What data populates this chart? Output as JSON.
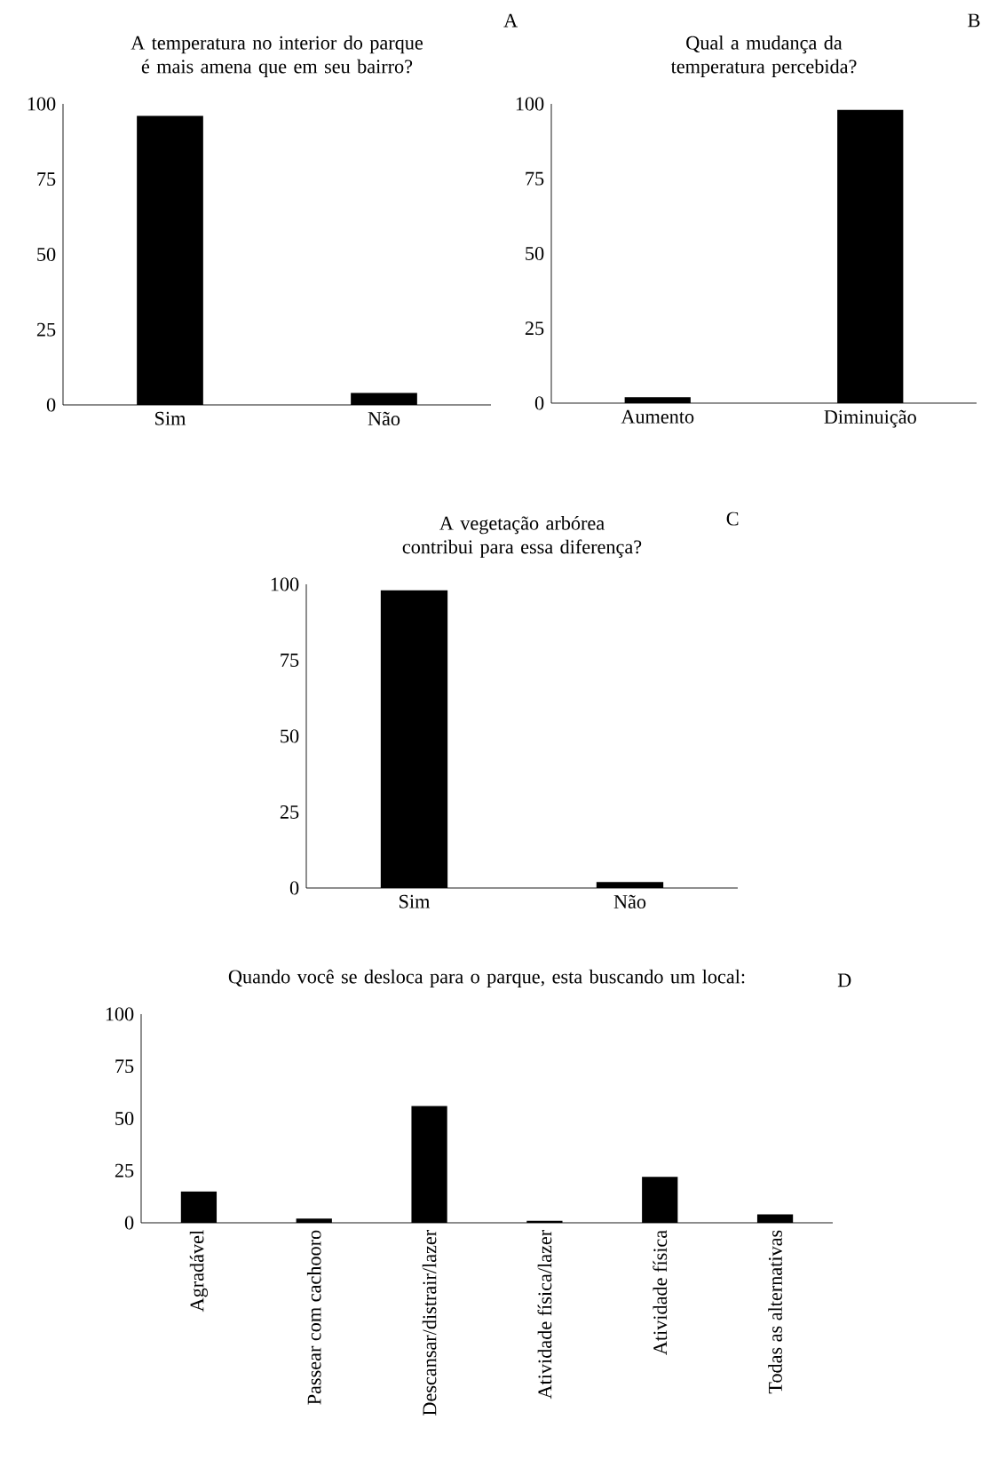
{
  "chart_data": [
    {
      "type": "bar",
      "title": "A  temperatura no interior do parque é mais amena que em seu bairro?",
      "categories": [
        "Sim",
        "Não"
      ],
      "values": [
        96,
        4
      ],
      "color": "#000000",
      "ylim": [
        0,
        100
      ],
      "yticks": [
        0,
        25,
        50,
        75,
        100
      ],
      "annotations": [
        "A"
      ]
    },
    {
      "type": "bar",
      "title": "Qual a mudança da temperatura percebida?",
      "categories": [
        "Aumento",
        "Diminuição"
      ],
      "values": [
        2,
        98
      ],
      "color": "#000000",
      "ylim": [
        0,
        100
      ],
      "yticks": [
        0,
        25,
        50,
        75,
        100
      ],
      "annotations": [
        "B"
      ]
    },
    {
      "type": "bar",
      "title": "A vegetação arbórea contribui para essa diferença?",
      "categories": [
        "Sim",
        "Não"
      ],
      "values": [
        98,
        2
      ],
      "color": "#000000",
      "ylim": [
        0,
        100
      ],
      "yticks": [
        0,
        25,
        50,
        75,
        100
      ],
      "annotations": [
        "C"
      ]
    },
    {
      "type": "bar",
      "title": "Quando você se desloca para o parque, esta buscando um local:",
      "categories": [
        "Agradável",
        "Passear com cachooro",
        "Descansar/distrair/lazer",
        "Atividade física/lazer",
        "Atividade física",
        "Todas as alternativas"
      ],
      "values": [
        15,
        2,
        56,
        1,
        22,
        4
      ],
      "color": "#000000",
      "ylim": [
        0,
        100
      ],
      "yticks": [
        0,
        25,
        50,
        75,
        100
      ],
      "annotations": [
        "D"
      ]
    }
  ]
}
